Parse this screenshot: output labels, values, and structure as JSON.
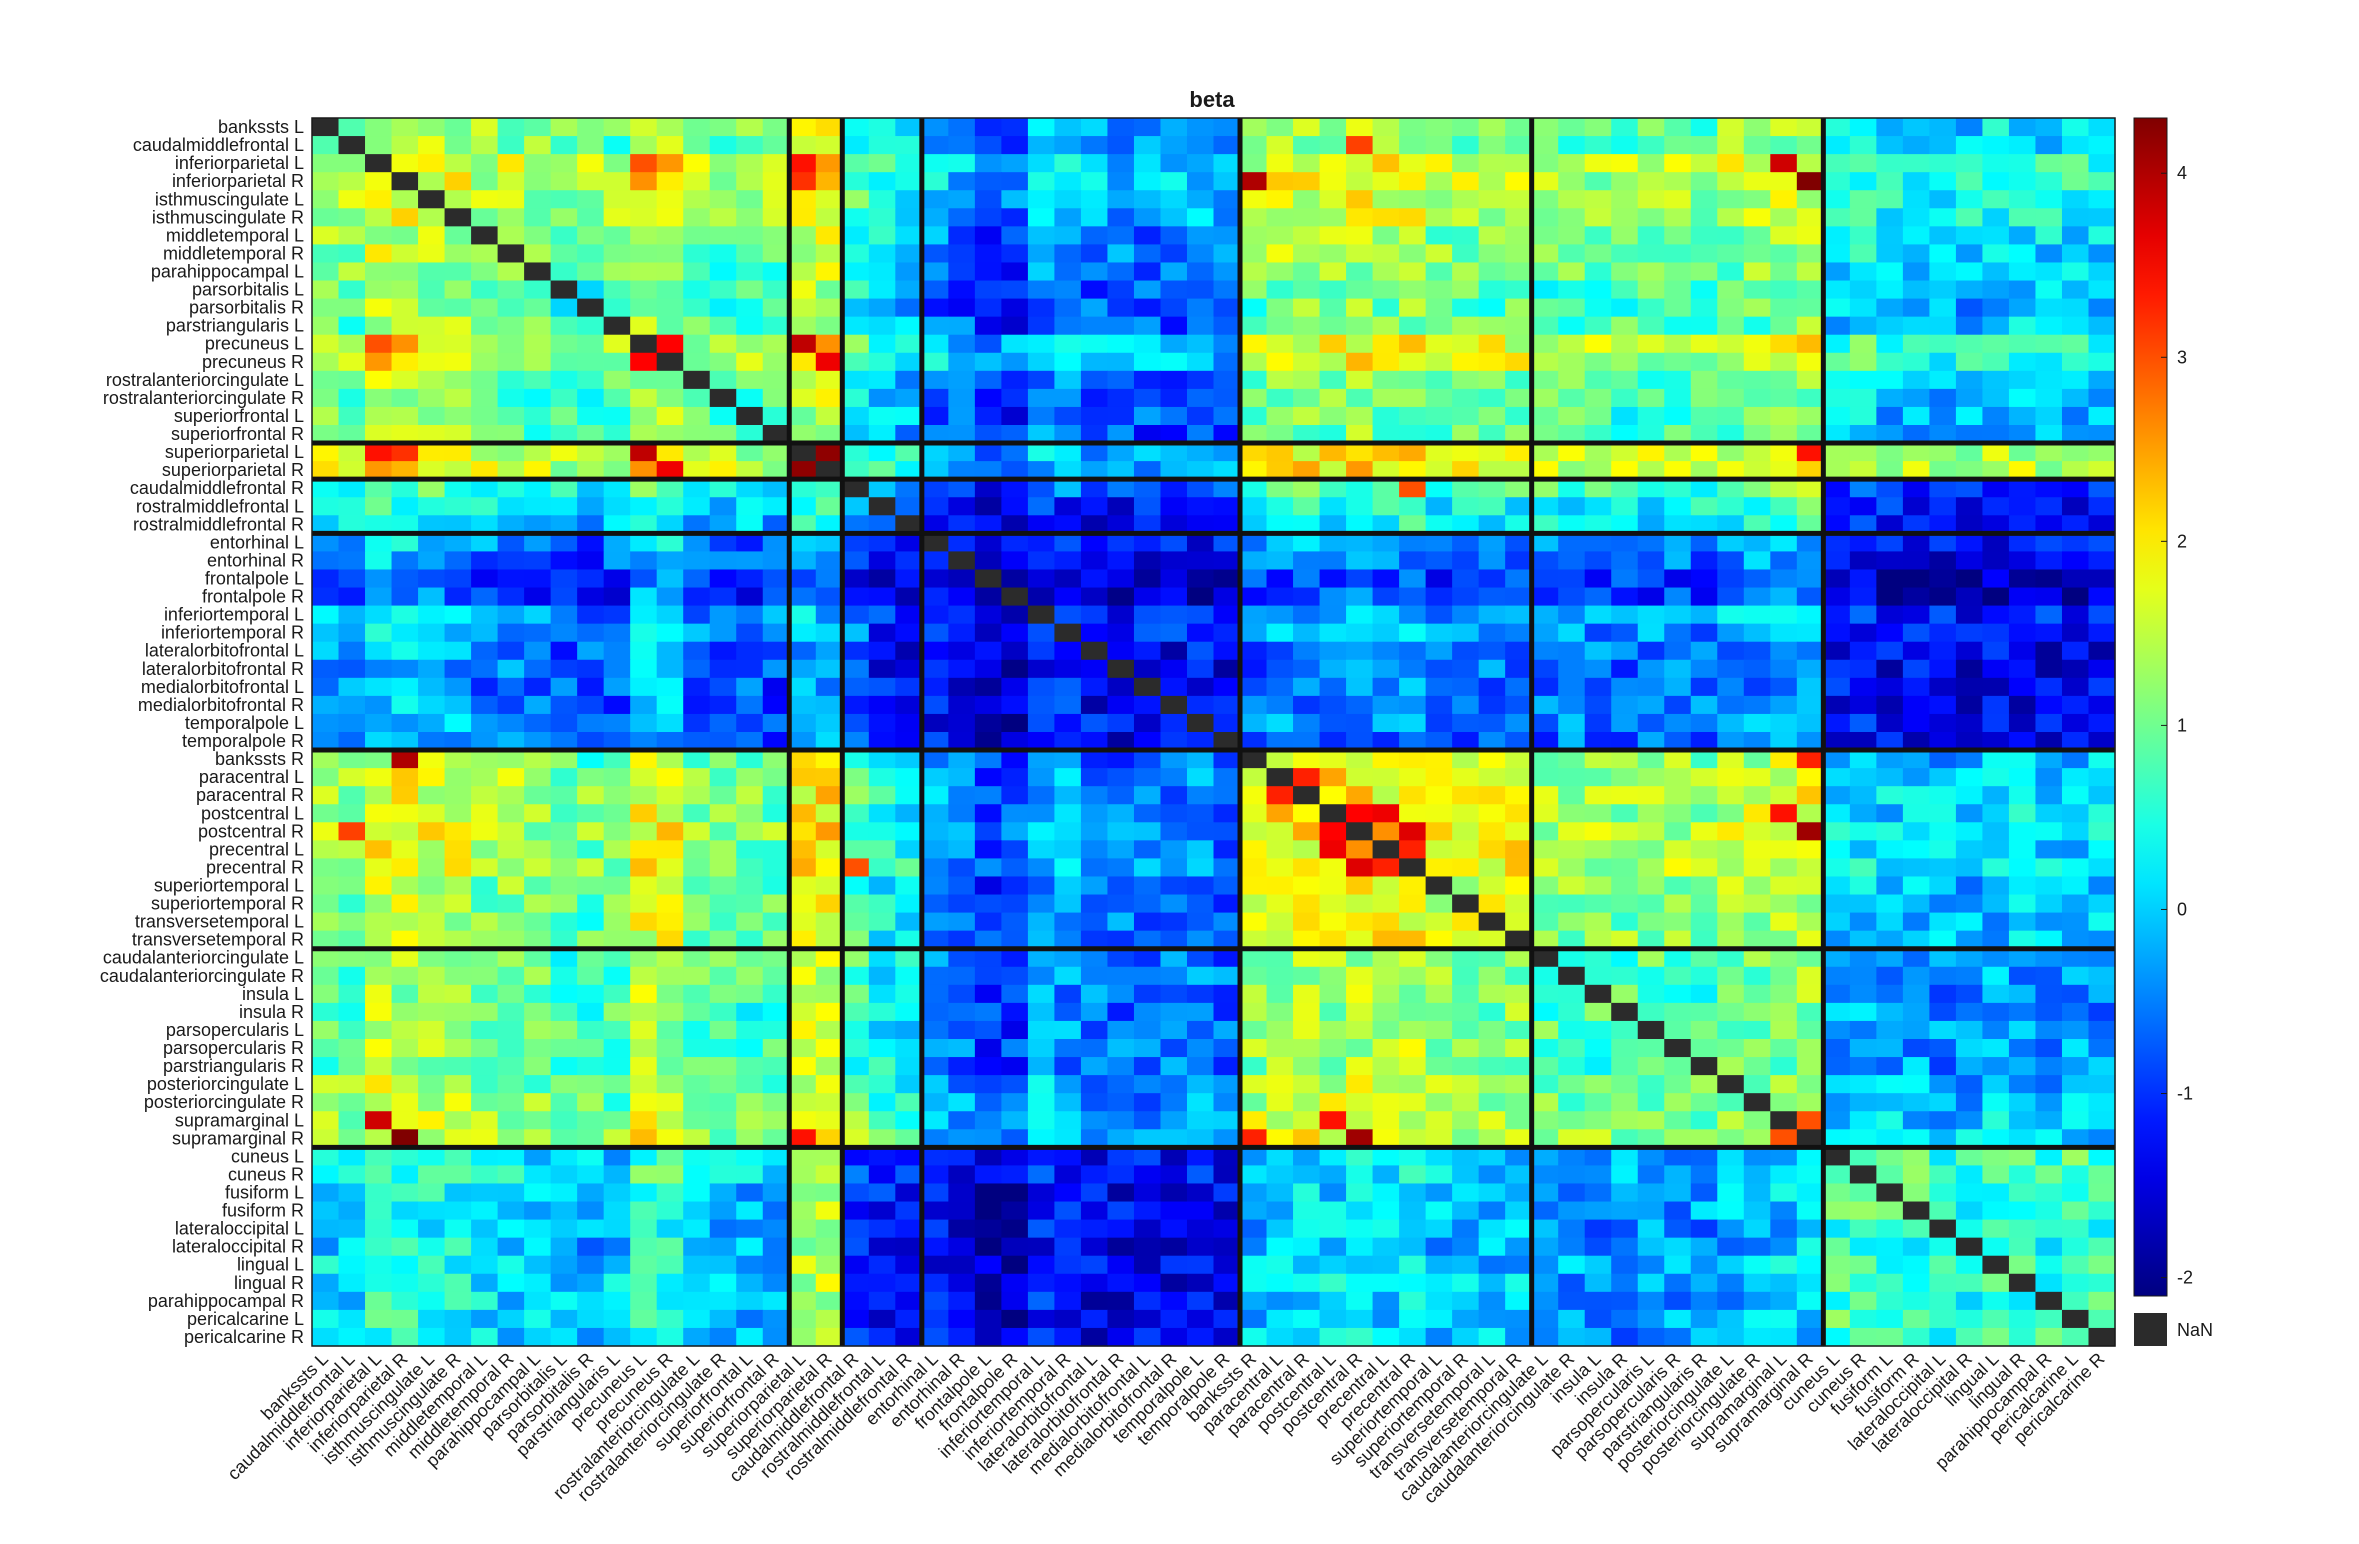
{
  "chart_data": {
    "type": "heatmap",
    "title": "beta",
    "xlabel": "",
    "ylabel": "",
    "colormap": "jet",
    "clim": [
      -2.1,
      4.3
    ],
    "nan_color": "#2b2b2b",
    "nan_label": "NaN",
    "colorbar_ticks": [
      4,
      3,
      2,
      1,
      0,
      -1,
      -2
    ],
    "labels": [
      "bankssts L",
      "caudalmiddlefrontal L",
      "inferiorparietal L",
      "inferiorparietal R",
      "isthmuscingulate L",
      "isthmuscingulate R",
      "middletemporal L",
      "middletemporal R",
      "parahippocampal L",
      "parsorbitalis L",
      "parsorbitalis R",
      "parstriangularis L",
      "precuneus L",
      "precuneus R",
      "rostralanteriorcingulate L",
      "rostralanteriorcingulate R",
      "superiorfrontal L",
      "superiorfrontal R",
      "superiorparietal L",
      "superiorparietal R",
      "caudalmiddlefrontal R",
      "rostralmiddlefrontal L",
      "rostralmiddlefrontal R",
      "entorhinal L",
      "entorhinal R",
      "frontalpole L",
      "frontalpole R",
      "inferiortemporal L",
      "inferiortemporal R",
      "lateralorbitofrontal L",
      "lateralorbitofrontal R",
      "medialorbitofrontal L",
      "medialorbitofrontal R",
      "temporalpole L",
      "temporalpole R",
      "bankssts R",
      "paracentral L",
      "paracentral R",
      "postcentral L",
      "postcentral R",
      "precentral L",
      "precentral R",
      "superiortemporal L",
      "superiortemporal R",
      "transversetemporal L",
      "transversetemporal R",
      "caudalanteriorcingulate L",
      "caudalanteriorcingulate R",
      "insula L",
      "insula R",
      "parsopercularis L",
      "parsopercularis R",
      "parstriangularis R",
      "posteriorcingulate L",
      "posteriorcingulate R",
      "supramarginal L",
      "supramarginal R",
      "cuneus L",
      "cuneus R",
      "fusiform L",
      "fusiform R",
      "lateraloccipital L",
      "lateraloccipital R",
      "lingual L",
      "lingual R",
      "parahippocampal R",
      "pericalcarine L",
      "pericalcarine R"
    ],
    "module_sizes": [
      18,
      2,
      3,
      12,
      11,
      11,
      11
    ],
    "module_means": [
      [
        0.9,
        1.3,
        0.2,
        -0.6,
        0.9,
        0.8,
        0.0
      ],
      [
        1.3,
        3.2,
        0.5,
        -0.5,
        1.4,
        1.2,
        1.1
      ],
      [
        0.2,
        0.5,
        -0.4,
        -1.1,
        0.3,
        0.4,
        -1.2
      ],
      [
        -0.6,
        -0.5,
        -1.1,
        -1.3,
        -0.7,
        -0.6,
        -1.4
      ],
      [
        0.9,
        1.4,
        0.3,
        -0.7,
        1.4,
        1.0,
        -0.2
      ],
      [
        0.8,
        1.2,
        0.4,
        -0.6,
        1.0,
        0.7,
        -0.4
      ],
      [
        0.0,
        1.1,
        -1.2,
        -1.4,
        -0.2,
        -0.4,
        0.6
      ]
    ],
    "row_offsets": [
      0.3,
      0.2,
      1.2,
      1.1,
      0.9,
      0.8,
      0.2,
      0.2,
      0.0,
      -0.3,
      -0.4,
      -0.2,
      1.2,
      1.1,
      -0.1,
      -0.2,
      -0.3,
      -0.4,
      0.4,
      0.5,
      0.6,
      -0.2,
      -0.4,
      0.2,
      -0.1,
      -0.8,
      -0.8,
      0.5,
      0.4,
      0.0,
      -0.1,
      -0.1,
      -0.1,
      0.0,
      -0.2,
      0.2,
      0.6,
      0.6,
      0.5,
      0.8,
      0.5,
      0.7,
      0.1,
      0.1,
      0.2,
      0.3,
      0.1,
      0.1,
      0.0,
      0.0,
      0.1,
      0.1,
      0.0,
      0.5,
      0.5,
      0.8,
      0.9,
      0.3,
      0.3,
      0.1,
      0.1,
      -0.2,
      -0.2,
      0.1,
      0.1,
      0.0,
      0.0,
      0.0
    ],
    "strong_cells": [
      {
        "row": "inferiorparietal L",
        "col": "precuneus L",
        "value": 3.0
      },
      {
        "row": "inferiorparietal R",
        "col": "superiorparietal L",
        "value": 3.2
      },
      {
        "row": "inferiorparietal R",
        "col": "supramarginal R",
        "value": 4.1
      },
      {
        "row": "inferiorparietal L",
        "col": "supramarginal L",
        "value": 3.8
      },
      {
        "row": "precuneus L",
        "col": "superiorparietal L",
        "value": 3.9
      },
      {
        "row": "precuneus R",
        "col": "superiorparietal R",
        "value": 3.6
      },
      {
        "row": "precuneus L",
        "col": "precuneus R",
        "value": 3.5
      },
      {
        "row": "superiorparietal L",
        "col": "superiorparietal R",
        "value": 4.2
      },
      {
        "row": "superiorparietal L",
        "col": "supramarginal R",
        "value": 3.4
      },
      {
        "row": "paracentral L",
        "col": "paracentral R",
        "value": 3.3
      },
      {
        "row": "postcentral L",
        "col": "postcentral R",
        "value": 3.5
      },
      {
        "row": "postcentral R",
        "col": "supramarginal R",
        "value": 4.2
      },
      {
        "row": "postcentral L",
        "col": "precentral L",
        "value": 3.6
      },
      {
        "row": "postcentral R",
        "col": "precentral R",
        "value": 3.7
      },
      {
        "row": "precentral L",
        "col": "precentral R",
        "value": 3.3
      },
      {
        "row": "supramarginal L",
        "col": "supramarginal R",
        "value": 3.0
      },
      {
        "row": "bankssts R",
        "col": "inferiorparietal R",
        "value": 4.0
      },
      {
        "row": "bankssts R",
        "col": "supramarginal R",
        "value": 3.3
      },
      {
        "row": "caudalmiddlefrontal R",
        "col": "precentral R",
        "value": 3.0
      },
      {
        "row": "inferiorparietal L",
        "col": "superiorparietal L",
        "value": 3.4
      },
      {
        "row": "caudalmiddlefrontal L",
        "col": "postcentral R",
        "value": 3.1
      },
      {
        "row": "supramarginal R",
        "col": "inferiorparietal R",
        "value": 4.3
      },
      {
        "row": "supramarginal R",
        "col": "postcentral R",
        "value": 4.1
      },
      {
        "row": "supramarginal L",
        "col": "postcentral L",
        "value": 3.4
      }
    ]
  }
}
